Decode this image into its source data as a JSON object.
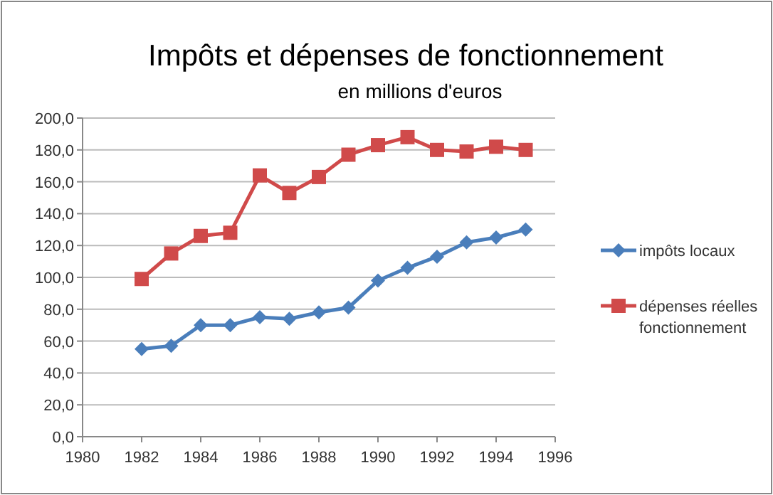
{
  "chart_data": {
    "type": "line",
    "title": "Impôts et dépenses de fonctionnement",
    "subtitle": "en millions d'euros",
    "x": [
      1982,
      1983,
      1984,
      1985,
      1986,
      1987,
      1988,
      1989,
      1990,
      1991,
      1992,
      1993,
      1994,
      1995
    ],
    "series": [
      {
        "name": "impôts locaux",
        "color": "#4a7ebb",
        "marker": "diamond",
        "values": [
          55,
          57,
          70,
          70,
          75,
          74,
          78,
          81,
          98,
          106,
          113,
          122,
          125,
          130
        ]
      },
      {
        "name": "dépenses réelles fonctionnement",
        "color": "#d04a4a",
        "marker": "square",
        "values": [
          99,
          115,
          126,
          128,
          164,
          153,
          163,
          177,
          183,
          188,
          180,
          179,
          182,
          180
        ]
      }
    ],
    "xlim": [
      1980,
      1996
    ],
    "xticks": [
      1980,
      1982,
      1984,
      1986,
      1988,
      1990,
      1992,
      1994,
      1996
    ],
    "ylim": [
      0,
      200
    ],
    "yticks": [
      {
        "value": 0,
        "label": "0,0"
      },
      {
        "value": 20,
        "label": "20,0"
      },
      {
        "value": 40,
        "label": "40,0"
      },
      {
        "value": 60,
        "label": "60,0"
      },
      {
        "value": 80,
        "label": "80,0"
      },
      {
        "value": 100,
        "label": "100,0"
      },
      {
        "value": 120,
        "label": "120,0"
      },
      {
        "value": 140,
        "label": "140,0"
      },
      {
        "value": 160,
        "label": "160,0"
      },
      {
        "value": 180,
        "label": "180,0"
      },
      {
        "value": 200,
        "label": "200,0"
      }
    ],
    "grid": "y",
    "legend": "right",
    "line_style": "solid"
  }
}
